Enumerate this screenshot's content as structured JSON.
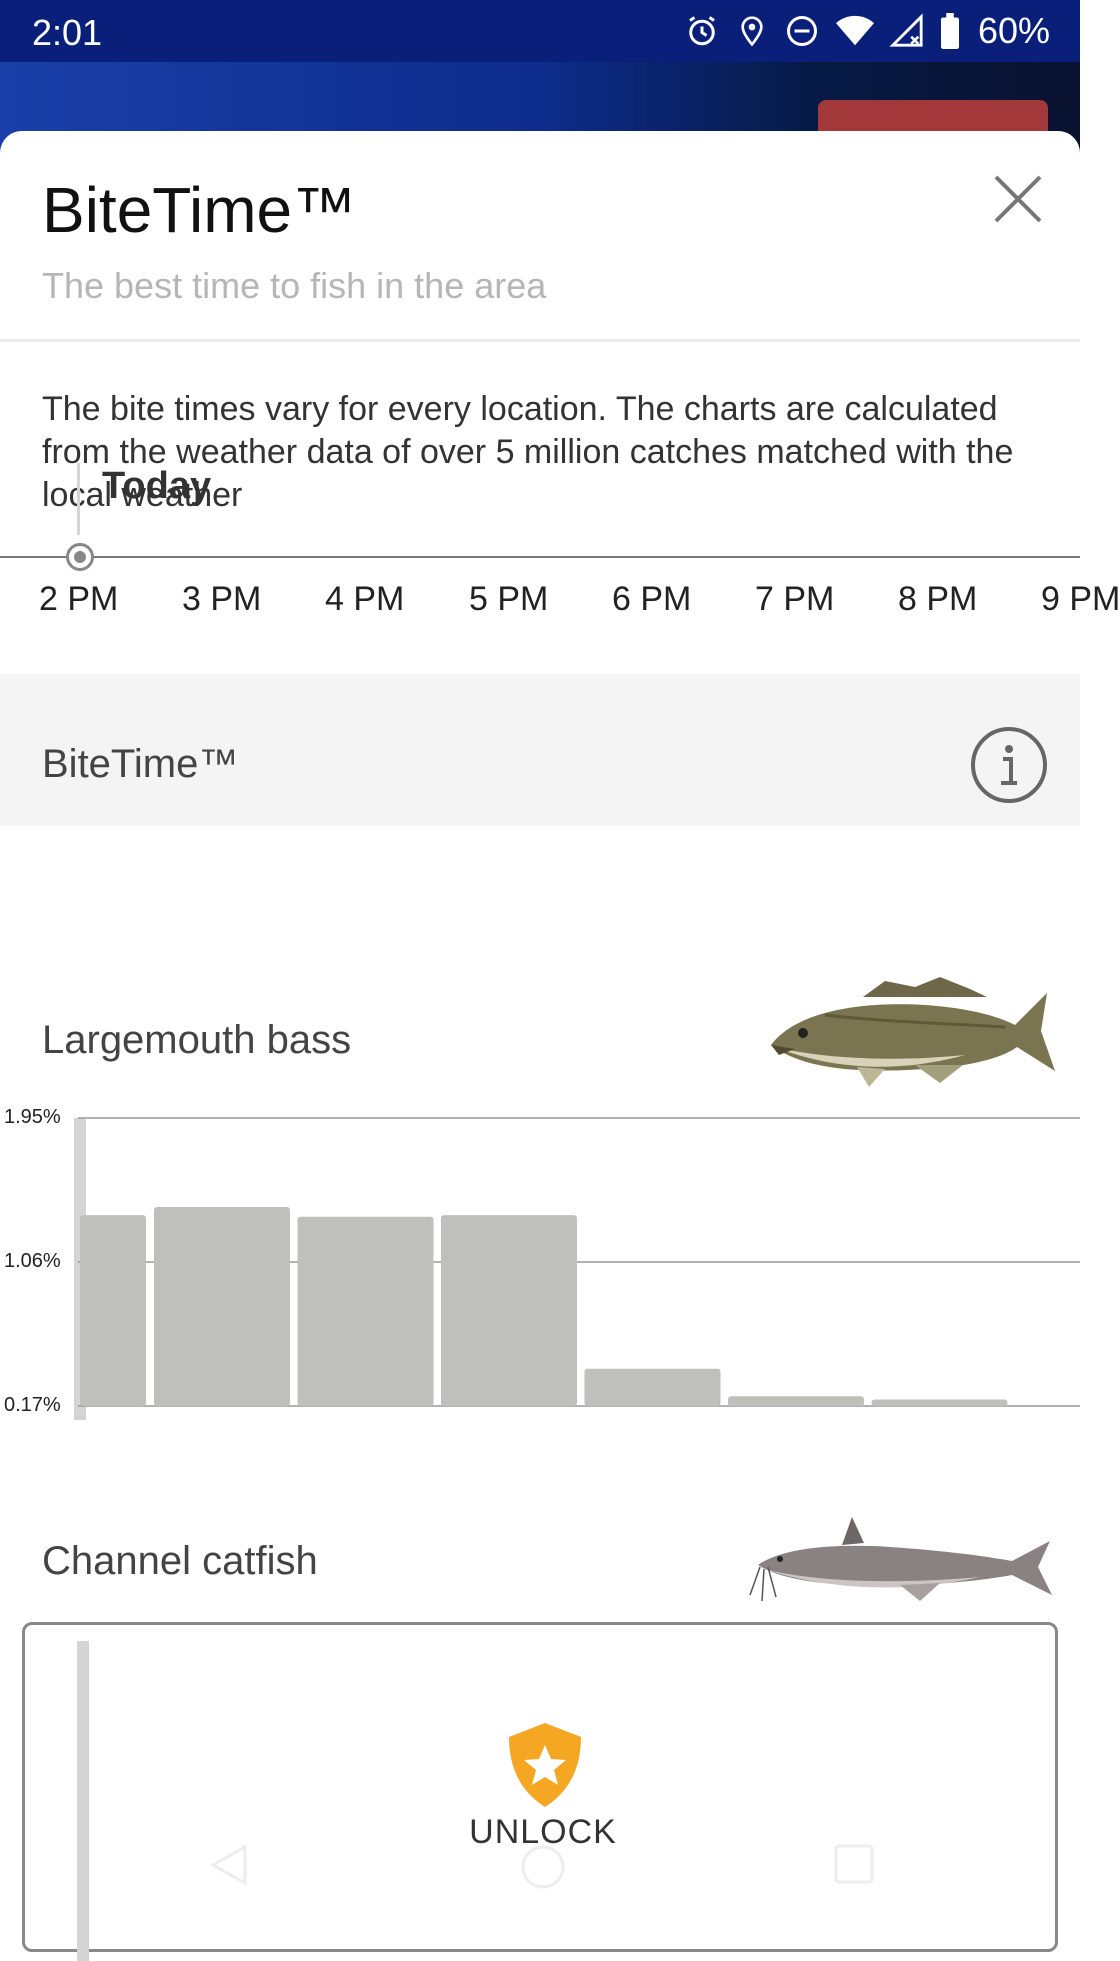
{
  "status_bar": {
    "time": "2:01",
    "battery": "60%",
    "icons": [
      "alarm-icon",
      "location-icon",
      "do-not-disturb-icon",
      "wifi-icon",
      "signal-icon",
      "battery-icon"
    ]
  },
  "sheet": {
    "title": "BiteTime™",
    "subtitle": "The best time to fish in the area",
    "description": "The bite times vary for every location. The charts are calculated from the weather data of over 5 million catches matched with the local weather"
  },
  "timeline": {
    "today_label": "Today",
    "hours": [
      "2 PM",
      "3 PM",
      "4 PM",
      "5 PM",
      "6 PM",
      "7 PM",
      "8 PM",
      "9 PM"
    ]
  },
  "section": {
    "title": "BiteTime™"
  },
  "species": [
    {
      "name": "Largemouth bass"
    },
    {
      "name": "Channel catfish"
    }
  ],
  "locked": {
    "label": "UNLOCK"
  },
  "colors": {
    "bar": "#bfc0bb",
    "accent": "#f5a623",
    "status_bar": "#0a1f7a"
  },
  "chart_data": {
    "type": "bar",
    "title": "Largemouth bass",
    "categories": [
      "2 PM",
      "3 PM",
      "4 PM",
      "5 PM",
      "6 PM",
      "7 PM",
      "8 PM"
    ],
    "values": [
      1.35,
      1.4,
      1.34,
      1.35,
      0.4,
      0.23,
      0.21
    ],
    "y_ticks": [
      "1.95%",
      "1.06%",
      "0.17%"
    ],
    "ylim": [
      0.17,
      1.95
    ],
    "grid": true
  }
}
